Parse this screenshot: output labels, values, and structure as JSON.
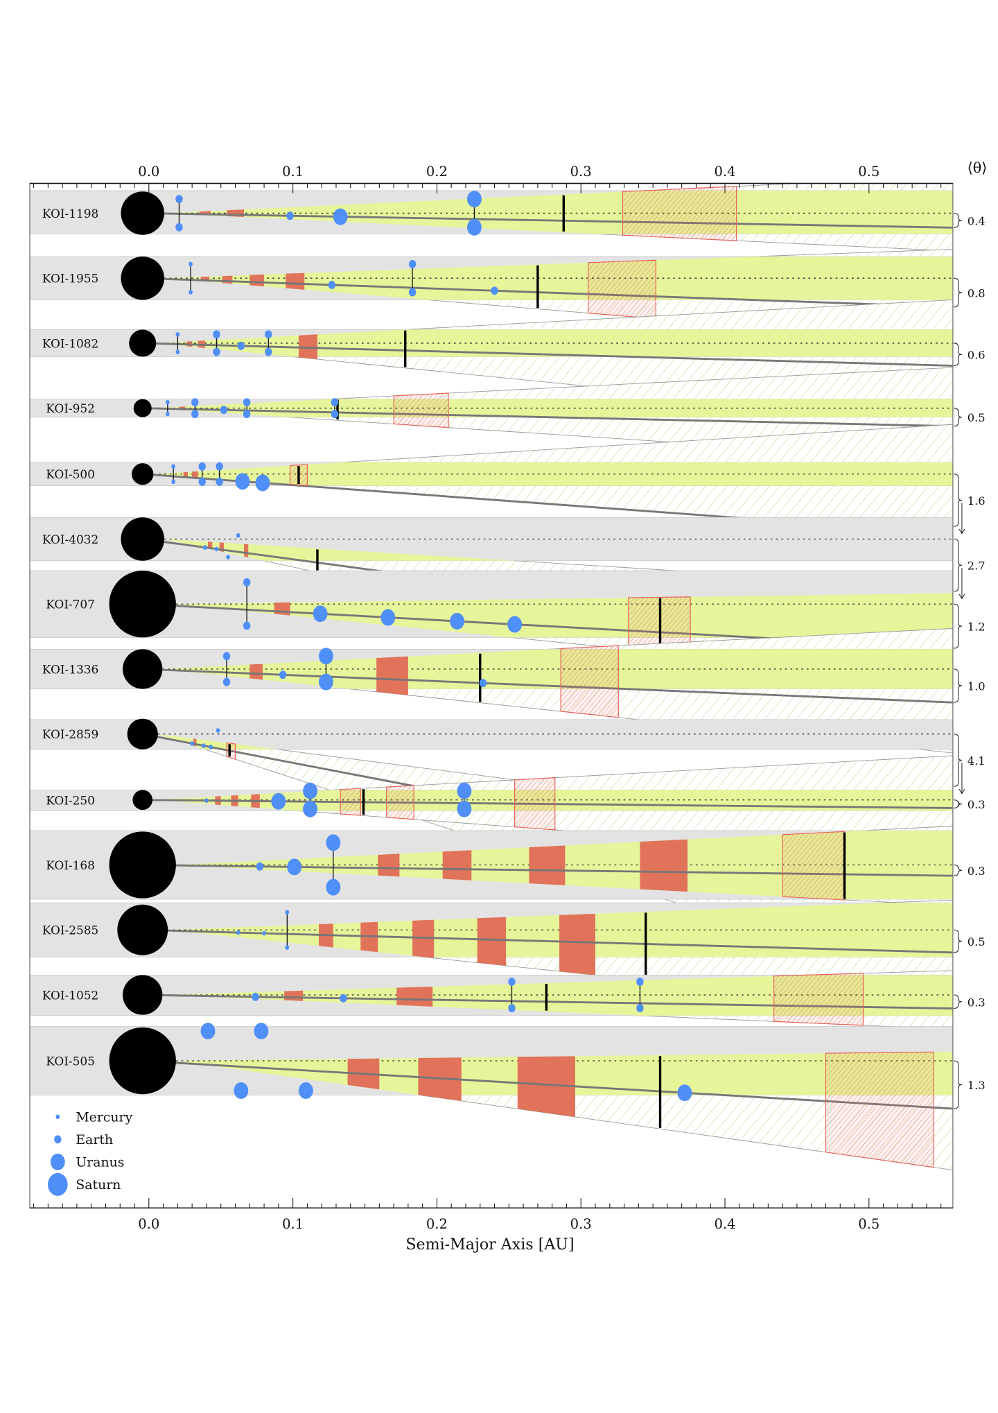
{
  "chart_data": {
    "type": "diagram-chart",
    "xlabel": "Semi-Major Axis [AU]",
    "theta_label": "⟨θ⟩",
    "xlim": [
      -0.083,
      0.558
    ],
    "x_ticks": [
      "0.0",
      "0.1",
      "0.2",
      "0.3",
      "0.4",
      "0.5"
    ],
    "x_tick_values": [
      0.0,
      0.1,
      0.2,
      0.3,
      0.4,
      0.5
    ],
    "colors": {
      "band": "#e3e3e3",
      "wedge": "#e6f59a",
      "transit_zone": "#e0735a",
      "planet": "#4f8ff7",
      "star": "#000000",
      "hatch_green": "#a9d47c",
      "hatch_red": "#e8625a"
    },
    "legend": [
      {
        "label": "Mercury",
        "size": "mercury"
      },
      {
        "label": "Earth",
        "size": "earth"
      },
      {
        "label": "Uranus",
        "size": "uranus"
      },
      {
        "label": "Saturn",
        "size": "saturn"
      }
    ],
    "systems": [
      {
        "name": "KOI-1198",
        "theta": "0.4",
        "planets": [
          {
            "a": 0.021,
            "size": "earth",
            "pair": true
          },
          {
            "a": 0.098,
            "size": "earth"
          },
          {
            "a": 0.133,
            "size": "uranus"
          },
          {
            "a": 0.226,
            "size": "uranus",
            "pair": true
          }
        ],
        "zones": [
          {
            "a": 0.035,
            "w": 0.008
          },
          {
            "a": 0.054,
            "w": 0.012
          }
        ],
        "marker": 0.288,
        "hatched": [
          [
            0.329,
            0.408
          ]
        ]
      },
      {
        "name": "KOI-1955",
        "theta": "0.8",
        "planets": [
          {
            "a": 0.029,
            "size": "mercury",
            "pair": true
          },
          {
            "a": 0.127,
            "size": "earth"
          },
          {
            "a": 0.183,
            "size": "earth",
            "pair": true
          },
          {
            "a": 0.24,
            "size": "earth"
          }
        ],
        "zones": [
          {
            "a": 0.036,
            "w": 0.006
          },
          {
            "a": 0.051,
            "w": 0.007
          },
          {
            "a": 0.07,
            "w": 0.01
          },
          {
            "a": 0.095,
            "w": 0.013
          }
        ],
        "marker": 0.27,
        "hatched": [
          [
            0.305,
            0.352
          ]
        ]
      },
      {
        "name": "KOI-1082",
        "theta": "0.6",
        "planets": [
          {
            "a": 0.02,
            "size": "mercury",
            "pair": true
          },
          {
            "a": 0.047,
            "size": "earth",
            "pair": true
          },
          {
            "a": 0.064,
            "size": "earth"
          },
          {
            "a": 0.083,
            "size": "earth",
            "pair": true
          }
        ],
        "zones": [
          {
            "a": 0.026,
            "w": 0.004
          },
          {
            "a": 0.034,
            "w": 0.005
          },
          {
            "a": 0.104,
            "w": 0.013
          }
        ],
        "marker": 0.178,
        "hatched": []
      },
      {
        "name": "KOI-952",
        "theta": "0.5",
        "planets": [
          {
            "a": 0.013,
            "size": "mercury",
            "pair": true
          },
          {
            "a": 0.032,
            "size": "earth",
            "pair": true
          },
          {
            "a": 0.052,
            "size": "earth"
          },
          {
            "a": 0.068,
            "size": "earth",
            "pair": true
          },
          {
            "a": 0.129,
            "size": "earth",
            "pair": true
          }
        ],
        "zones": [
          {
            "a": 0.021,
            "w": 0.004
          }
        ],
        "marker": 0.131,
        "hatched": [
          [
            0.17,
            0.208
          ]
        ]
      },
      {
        "name": "KOI-500",
        "theta": "1.6",
        "planets": [
          {
            "a": 0.017,
            "size": "mercury",
            "pair": true
          },
          {
            "a": 0.037,
            "size": "earth",
            "pair": true
          },
          {
            "a": 0.049,
            "size": "earth",
            "pair": true
          },
          {
            "a": 0.065,
            "size": "uranus"
          },
          {
            "a": 0.079,
            "size": "uranus"
          }
        ],
        "zones": [
          {
            "a": 0.024,
            "w": 0.003
          },
          {
            "a": 0.03,
            "w": 0.004
          }
        ],
        "marker": 0.104,
        "hatched": [
          [
            0.098,
            0.11
          ]
        ]
      },
      {
        "name": "KOI-4032",
        "theta": "2.7",
        "planets": [
          {
            "a": 0.039,
            "size": "mercury"
          },
          {
            "a": 0.047,
            "size": "mercury"
          },
          {
            "a": 0.055,
            "size": "mercury",
            "offset": "below"
          },
          {
            "a": 0.062,
            "size": "mercury",
            "offset": "above"
          }
        ],
        "zones": [
          {
            "a": 0.041,
            "w": 0.003
          },
          {
            "a": 0.049,
            "w": 0.003
          },
          {
            "a": 0.066,
            "w": 0.003
          }
        ],
        "marker": 0.117,
        "hatched": []
      },
      {
        "name": "KOI-707",
        "theta": "1.2",
        "planets": [
          {
            "a": 0.068,
            "size": "earth",
            "pair": true
          },
          {
            "a": 0.119,
            "size": "uranus"
          },
          {
            "a": 0.166,
            "size": "uranus"
          },
          {
            "a": 0.214,
            "size": "uranus"
          },
          {
            "a": 0.254,
            "size": "uranus"
          }
        ],
        "zones": [
          {
            "a": 0.087,
            "w": 0.011
          }
        ],
        "marker": 0.355,
        "hatched": [
          [
            0.333,
            0.376
          ]
        ]
      },
      {
        "name": "KOI-1336",
        "theta": "1.0",
        "planets": [
          {
            "a": 0.054,
            "size": "earth",
            "pair": true
          },
          {
            "a": 0.093,
            "size": "earth"
          },
          {
            "a": 0.123,
            "size": "uranus",
            "pair": true
          },
          {
            "a": 0.232,
            "size": "earth"
          }
        ],
        "zones": [
          {
            "a": 0.07,
            "w": 0.009
          },
          {
            "a": 0.158,
            "w": 0.022
          }
        ],
        "marker": 0.23,
        "hatched": [
          [
            0.286,
            0.326
          ]
        ]
      },
      {
        "name": "KOI-2859",
        "theta": "4.1",
        "planets": [
          {
            "a": 0.03,
            "size": "mercury"
          },
          {
            "a": 0.038,
            "size": "mercury"
          },
          {
            "a": 0.043,
            "size": "mercury"
          },
          {
            "a": 0.048,
            "size": "mercury",
            "offset": "above"
          }
        ],
        "zones": [
          {
            "a": 0.031,
            "w": 0.002
          }
        ],
        "marker": 0.056,
        "hatched": [
          [
            0.054,
            0.06
          ]
        ]
      },
      {
        "name": "KOI-250",
        "theta": "0.3",
        "planets": [
          {
            "a": 0.04,
            "size": "mercury"
          },
          {
            "a": 0.09,
            "size": "uranus"
          },
          {
            "a": 0.112,
            "size": "uranus",
            "pair": true
          },
          {
            "a": 0.219,
            "size": "uranus",
            "pair": true
          }
        ],
        "zones": [
          {
            "a": 0.046,
            "w": 0.004
          },
          {
            "a": 0.057,
            "w": 0.005
          },
          {
            "a": 0.071,
            "w": 0.006
          }
        ],
        "marker": 0.149,
        "hatched": [
          [
            0.133,
            0.147
          ],
          [
            0.165,
            0.184
          ],
          [
            0.254,
            0.282
          ]
        ]
      },
      {
        "name": "KOI-168",
        "theta": "0.3",
        "planets": [
          {
            "a": 0.077,
            "size": "earth"
          },
          {
            "a": 0.101,
            "size": "uranus"
          },
          {
            "a": 0.128,
            "size": "uranus",
            "pair": true
          }
        ],
        "zones": [
          {
            "a": 0.159,
            "w": 0.015
          },
          {
            "a": 0.204,
            "w": 0.02
          },
          {
            "a": 0.264,
            "w": 0.025
          },
          {
            "a": 0.341,
            "w": 0.033
          }
        ],
        "marker": 0.483,
        "hatched": [
          [
            0.44,
            0.483
          ]
        ]
      },
      {
        "name": "KOI-2585",
        "theta": "0.5",
        "planets": [
          {
            "a": 0.062,
            "size": "mercury"
          },
          {
            "a": 0.08,
            "size": "mercury"
          },
          {
            "a": 0.096,
            "size": "mercury",
            "pair": true
          }
        ],
        "zones": [
          {
            "a": 0.118,
            "w": 0.01
          },
          {
            "a": 0.147,
            "w": 0.012
          },
          {
            "a": 0.183,
            "w": 0.015
          },
          {
            "a": 0.228,
            "w": 0.02
          },
          {
            "a": 0.285,
            "w": 0.025
          }
        ],
        "marker": 0.345,
        "hatched": []
      },
      {
        "name": "KOI-1052",
        "theta": "0.3",
        "planets": [
          {
            "a": 0.074,
            "size": "earth"
          },
          {
            "a": 0.135,
            "size": "earth"
          },
          {
            "a": 0.252,
            "size": "earth",
            "pair": true
          },
          {
            "a": 0.341,
            "size": "earth",
            "pair": true
          }
        ],
        "zones": [
          {
            "a": 0.094,
            "w": 0.013
          },
          {
            "a": 0.172,
            "w": 0.025
          }
        ],
        "marker": 0.276,
        "hatched": [
          [
            0.434,
            0.496
          ]
        ]
      },
      {
        "name": "KOI-505",
        "theta": "1.3",
        "planets": [
          {
            "a": 0.041,
            "size": "uranus",
            "offset": "above"
          },
          {
            "a": 0.078,
            "size": "uranus",
            "offset": "above"
          },
          {
            "a": 0.064,
            "size": "uranus",
            "offset": "below"
          },
          {
            "a": 0.109,
            "size": "uranus",
            "offset": "below"
          },
          {
            "a": 0.372,
            "size": "uranus"
          }
        ],
        "zones": [
          {
            "a": 0.138,
            "w": 0.022
          },
          {
            "a": 0.187,
            "w": 0.03
          },
          {
            "a": 0.256,
            "w": 0.04
          }
        ],
        "marker": 0.355,
        "hatched": [
          [
            0.47,
            0.545
          ]
        ]
      }
    ]
  }
}
